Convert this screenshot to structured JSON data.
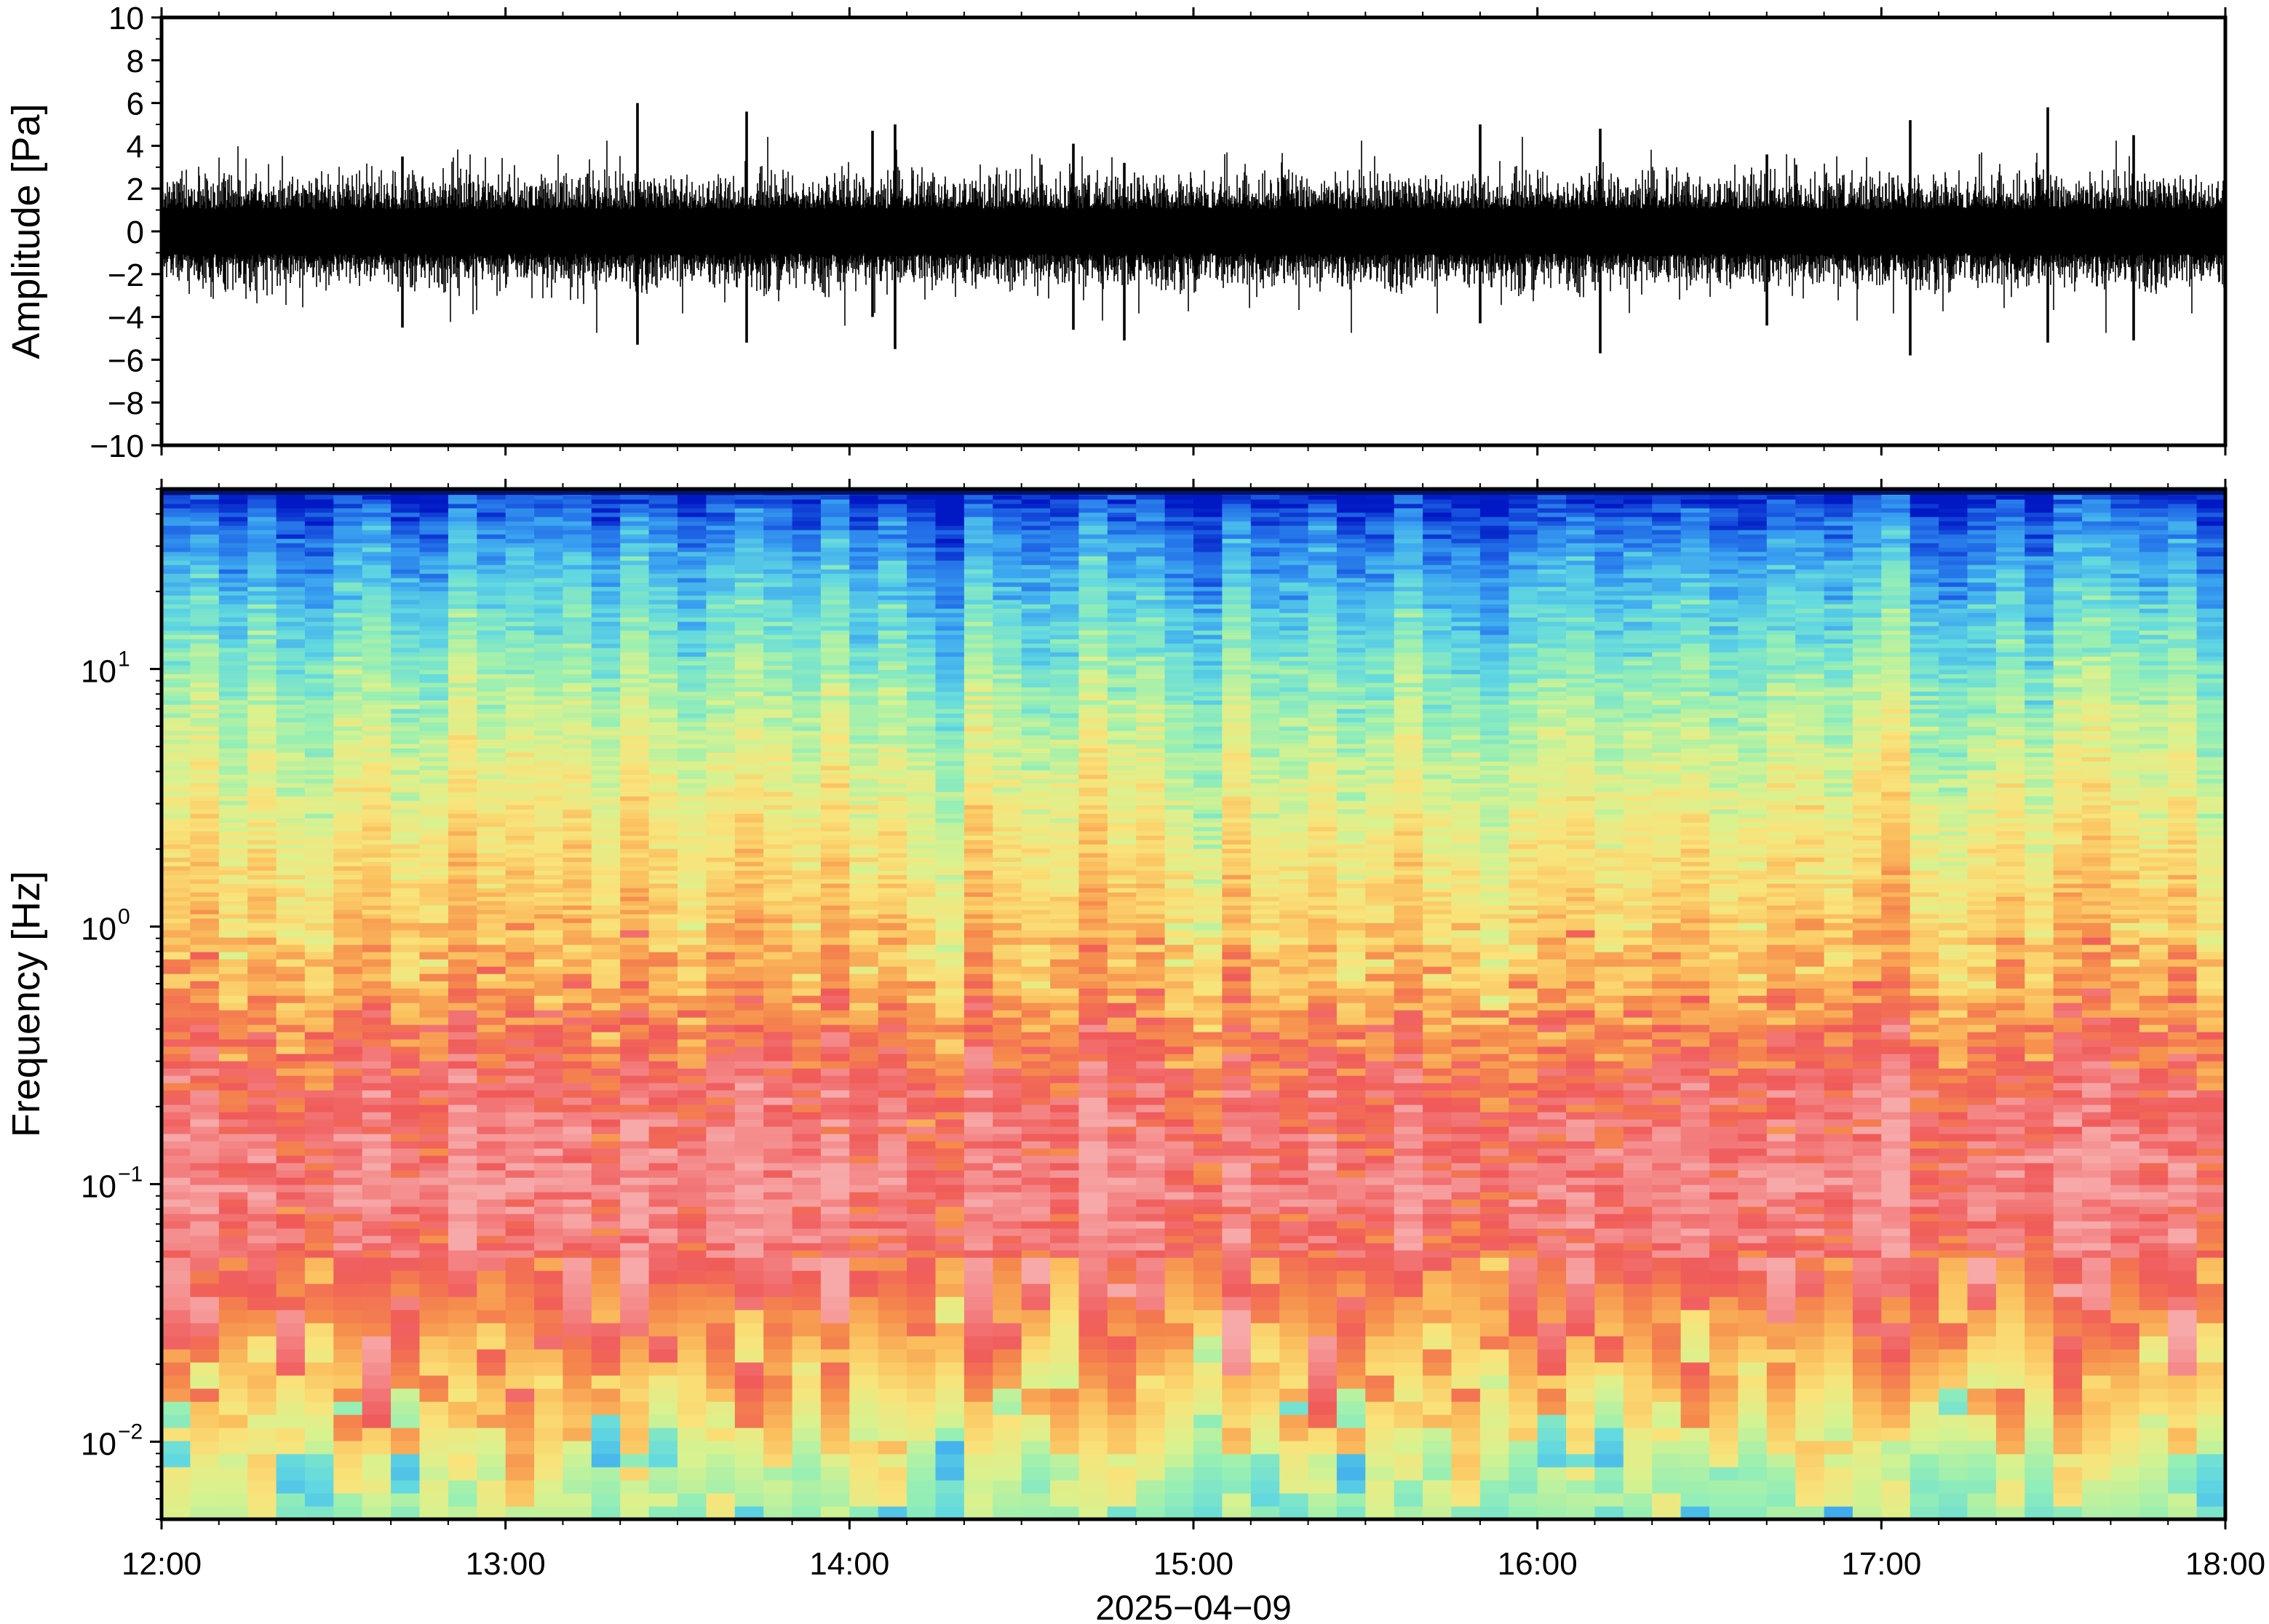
{
  "chart_data": [
    {
      "type": "line",
      "panel": "waveform",
      "ylabel": "Amplitude [Pa]",
      "ylim": [
        -10,
        10
      ],
      "yticks": [
        "10",
        "8",
        "6",
        "4",
        "2",
        "0",
        "−2",
        "−4",
        "−6",
        "−8",
        "−10"
      ],
      "ytick_values": [
        10,
        8,
        6,
        4,
        2,
        0,
        -2,
        -4,
        -6,
        -8,
        -10
      ],
      "grid": false,
      "series": [
        {
          "color": "#000000",
          "x_start": "2025-04-09 12:00",
          "x_end": "2025-04-09 18:00",
          "typical_envelope_pa": 1.6,
          "peaks": [
            {
              "t": "12:42",
              "max": 3.5,
              "min": -4.5
            },
            {
              "t": "13:23",
              "max": 6.0,
              "min": -5.3
            },
            {
              "t": "13:42",
              "max": 5.6,
              "min": -5.2
            },
            {
              "t": "14:04",
              "max": 4.7,
              "min": -4.0
            },
            {
              "t": "14:08",
              "max": 5.0,
              "min": -5.5
            },
            {
              "t": "14:39",
              "max": 4.1,
              "min": -4.6
            },
            {
              "t": "14:48",
              "max": 3.2,
              "min": -5.1
            },
            {
              "t": "15:50",
              "max": 5.0,
              "min": -4.3
            },
            {
              "t": "16:11",
              "max": 4.8,
              "min": -5.7
            },
            {
              "t": "16:40",
              "max": 3.6,
              "min": -4.4
            },
            {
              "t": "17:05",
              "max": 5.2,
              "min": -5.8
            },
            {
              "t": "17:29",
              "max": 5.8,
              "min": -5.2
            },
            {
              "t": "17:44",
              "max": 4.5,
              "min": -5.1
            }
          ]
        }
      ]
    },
    {
      "type": "heatmap",
      "panel": "spectrogram",
      "ylabel": "Frequency [Hz]",
      "yscale": "log",
      "ylim": [
        0.005,
        50
      ],
      "yticks": [
        {
          "base": "10",
          "exp": "−2",
          "value": 0.01
        },
        {
          "base": "10",
          "exp": "−1",
          "value": 0.1
        },
        {
          "base": "10",
          "exp": "0",
          "value": 1
        },
        {
          "base": "10",
          "exp": "1",
          "value": 10
        }
      ],
      "colormap": [
        "#0019c4",
        "#1f67e6",
        "#3ba5f0",
        "#62d9e0",
        "#96efb4",
        "#d8f28f",
        "#f9e37a",
        "#fbbf5e",
        "#f58a4c",
        "#f05a5a",
        "#f48686",
        "#f7a8a8"
      ],
      "profile": [
        {
          "freq_hz": 50,
          "level": 0.0
        },
        {
          "freq_hz": 35,
          "level": 0.12
        },
        {
          "freq_hz": 22,
          "level": 0.22
        },
        {
          "freq_hz": 12,
          "level": 0.32
        },
        {
          "freq_hz": 6,
          "level": 0.42
        },
        {
          "freq_hz": 3,
          "level": 0.5
        },
        {
          "freq_hz": 1.3,
          "level": 0.58
        },
        {
          "freq_hz": 0.6,
          "level": 0.66
        },
        {
          "freq_hz": 0.4,
          "level": 0.75
        },
        {
          "freq_hz": 0.25,
          "level": 0.82
        },
        {
          "freq_hz": 0.15,
          "level": 0.88
        },
        {
          "freq_hz": 0.09,
          "level": 0.92
        },
        {
          "freq_hz": 0.05,
          "level": 0.84
        },
        {
          "freq_hz": 0.03,
          "level": 0.75
        },
        {
          "freq_hz": 0.02,
          "level": 0.66
        },
        {
          "freq_hz": 0.013,
          "level": 0.55
        },
        {
          "freq_hz": 0.008,
          "level": 0.45
        },
        {
          "freq_hz": 0.005,
          "level": 0.38
        }
      ]
    }
  ],
  "xaxis": {
    "ticks": [
      "12:00",
      "13:00",
      "14:00",
      "15:00",
      "16:00",
      "17:00",
      "18:00"
    ],
    "label": "2025−04−09",
    "range": [
      "2025-04-09 12:00",
      "2025-04-09 18:00"
    ]
  }
}
